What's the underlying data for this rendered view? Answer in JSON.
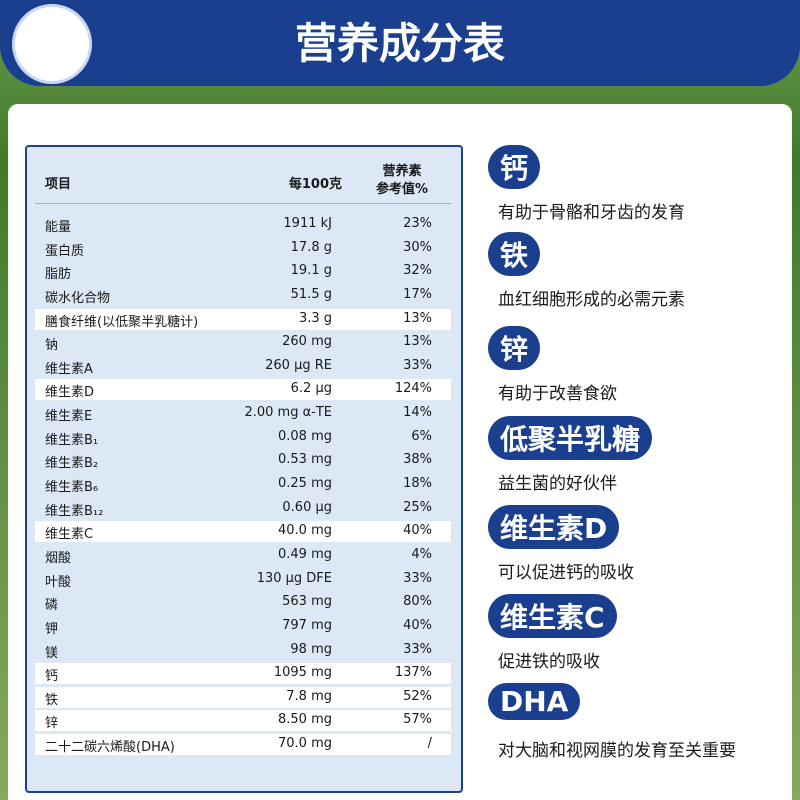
{
  "header": {
    "title": "营养成分表"
  },
  "table": {
    "headers": {
      "item": "项目",
      "amount": "每100克",
      "nrv": [
        "营养素",
        "参考值%"
      ]
    },
    "rows": [
      {
        "name": "能量",
        "amount": "1911 kJ",
        "nrv": "23%"
      },
      {
        "name": "蛋白质",
        "amount": "17.8 g",
        "nrv": "30%"
      },
      {
        "name": "脂肪",
        "amount": "19.1 g",
        "nrv": "32%"
      },
      {
        "name": "碳水化合物",
        "amount": "51.5 g",
        "nrv": "17%"
      },
      {
        "name": "膳食纤维(以低聚半乳糖计)",
        "amount": "3.3 g",
        "nrv": "13%",
        "highlight": true
      },
      {
        "name": "钠",
        "amount": "260 mg",
        "nrv": "13%"
      },
      {
        "name": "维生素A",
        "amount": "260 μg RE",
        "nrv": "33%"
      },
      {
        "name": "维生素D",
        "amount": "6.2 μg",
        "nrv": "124%",
        "highlight": true
      },
      {
        "name": "维生素E",
        "amount": "2.00 mg α-TE",
        "nrv": "14%"
      },
      {
        "name": "维生素B₁",
        "amount": "0.08 mg",
        "nrv": "6%"
      },
      {
        "name": "维生素B₂",
        "amount": "0.53 mg",
        "nrv": "38%"
      },
      {
        "name": "维生素B₆",
        "amount": "0.25 mg",
        "nrv": "18%"
      },
      {
        "name": "维生素B₁₂",
        "amount": "0.60 μg",
        "nrv": "25%"
      },
      {
        "name": "维生素C",
        "amount": "40.0 mg",
        "nrv": "40%",
        "highlight": true
      },
      {
        "name": "烟酸",
        "amount": "0.49 mg",
        "nrv": "4%"
      },
      {
        "name": "叶酸",
        "amount": "130 μg DFE",
        "nrv": "33%"
      },
      {
        "name": "磷",
        "amount": "563 mg",
        "nrv": "80%"
      },
      {
        "name": "钾",
        "amount": "797 mg",
        "nrv": "40%"
      },
      {
        "name": "镁",
        "amount": "98 mg",
        "nrv": "33%"
      },
      {
        "name": "钙",
        "amount": "1095 mg",
        "nrv": "137%",
        "highlight": true
      },
      {
        "name": "铁",
        "amount": "7.8 mg",
        "nrv": "52%",
        "highlight": true
      },
      {
        "name": "锌",
        "amount": "8.50 mg",
        "nrv": "57%",
        "highlight": true
      },
      {
        "name": "二十二碳六烯酸(DHA)",
        "amount": "70.0 mg",
        "nrv": "/",
        "highlight": true
      }
    ]
  },
  "features": [
    {
      "label": "钙",
      "text": "有助于骨骼和牙齿的发育"
    },
    {
      "label": "铁",
      "text": "血红细胞形成的必需元素"
    },
    {
      "label": "锌",
      "text": "有助于改善食欲"
    },
    {
      "label": "低聚半乳糖",
      "text": "益生菌的好伙伴"
    },
    {
      "label": "维生素D",
      "text": "可以促进钙的吸收"
    },
    {
      "label": "维生素C",
      "text": "促进铁的吸收"
    },
    {
      "label": "DHA",
      "text": "对大脑和视网膜的发育至关重要"
    }
  ]
}
